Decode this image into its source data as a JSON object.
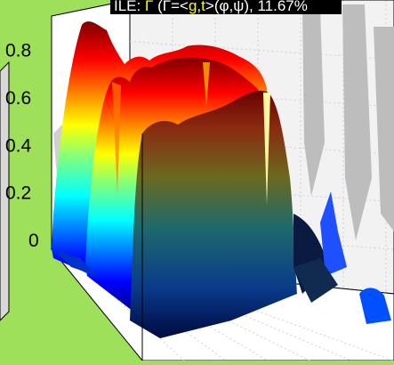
{
  "title": {
    "prefix": "ILE: ",
    "f_symbol": "Γ",
    "open": " (Γ=<",
    "g_symbol": "g",
    "sep": ",",
    "t_symbol": "t",
    "close": ">(φ,ψ), 11.67%"
  },
  "colors": {
    "background": "#9ee05a",
    "title_bg": "#000000",
    "title_text": "#ffffff",
    "title_highlight": "#ffff00"
  },
  "chart_data": {
    "type": "surface",
    "title": "ILE: Γ (Γ=<g,t>(φ,ψ), 11.67%",
    "zlim": [
      0,
      0.9
    ],
    "z_ticks": [
      "0",
      "0.2",
      "0.4",
      "0.6",
      "0.8"
    ],
    "colormap": "jet",
    "peak_z": 0.9,
    "grid": true,
    "box": true
  }
}
